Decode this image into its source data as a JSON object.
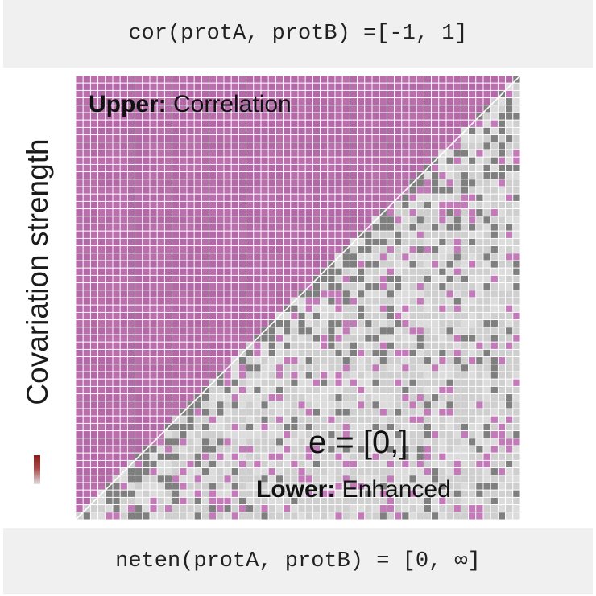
{
  "header": {
    "formula": "cor(protA, protB) =[-1, 1]"
  },
  "footer": {
    "formula": "neten(protA, protB) = [0, ∞]"
  },
  "axis": {
    "ylabel": "Covariation strength"
  },
  "matrix": {
    "upper_bold": "Upper:",
    "upper_text": " Correlation",
    "lower_bold": "Lower:",
    "lower_text": " Enhanced",
    "equation": "e = [0,]",
    "grid_size": 60,
    "colors": {
      "upper": "#b369a8",
      "upper_variant": "#b86fac",
      "lower_base": "#cfcfcf",
      "lower_dark": "#7f7f7f",
      "lower_pink": "#c27bb8",
      "lower_light": "#dcdcdc",
      "gridline": "#ffffff"
    }
  },
  "scale": {
    "top_color": "#8b1a1a",
    "bottom_color": "#e0e0e0"
  }
}
